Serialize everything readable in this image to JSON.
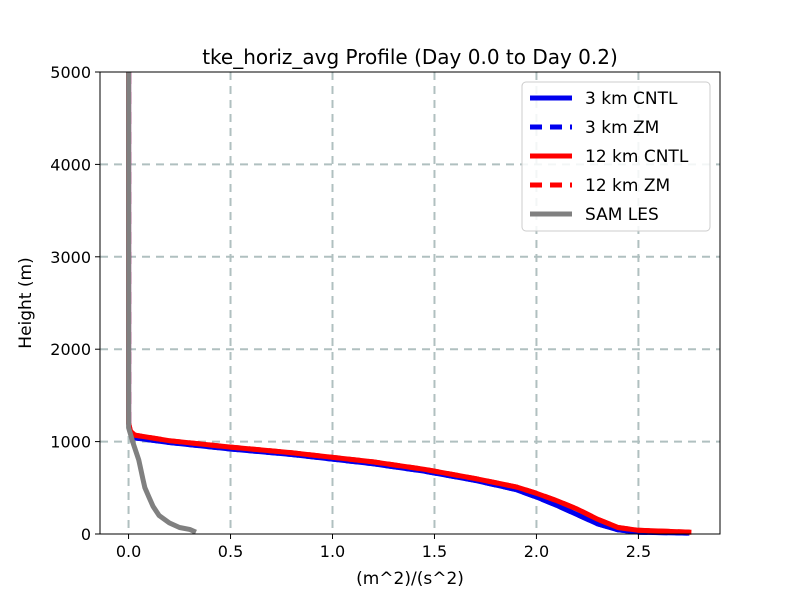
{
  "chart_data": {
    "type": "line",
    "title": "tke_horiz_avg Profile (Day 0.0 to Day 0.2)",
    "xlabel": "(m^2)/(s^2)",
    "ylabel": "Height (m)",
    "xlim": [
      -0.14,
      2.9
    ],
    "ylim": [
      0,
      5000
    ],
    "xticks": [
      0.0,
      0.5,
      1.0,
      1.5,
      2.0,
      2.5
    ],
    "xtick_labels": [
      "0.0",
      "0.5",
      "1.0",
      "1.5",
      "2.0",
      "2.5"
    ],
    "yticks": [
      0,
      1000,
      2000,
      3000,
      4000,
      5000
    ],
    "ytick_labels": [
      "0",
      "1000",
      "2000",
      "3000",
      "4000",
      "5000"
    ],
    "grid": true,
    "legend_position": "top-right",
    "series": [
      {
        "name": "3 km CNTL",
        "color": "#0000ee",
        "style": "solid",
        "points": [
          [
            0.0,
            5000
          ],
          [
            0.0,
            4000
          ],
          [
            0.0,
            3000
          ],
          [
            0.0,
            2000
          ],
          [
            0.0,
            1200
          ],
          [
            0.01,
            1100
          ],
          [
            0.03,
            1040
          ],
          [
            0.2,
            990
          ],
          [
            0.5,
            920
          ],
          [
            0.8,
            860
          ],
          [
            1.0,
            810
          ],
          [
            1.2,
            760
          ],
          [
            1.45,
            680
          ],
          [
            1.7,
            580
          ],
          [
            1.9,
            480
          ],
          [
            2.0,
            400
          ],
          [
            2.1,
            310
          ],
          [
            2.2,
            210
          ],
          [
            2.3,
            110
          ],
          [
            2.4,
            45
          ],
          [
            2.5,
            20
          ],
          [
            2.75,
            10
          ]
        ]
      },
      {
        "name": "3 km ZM",
        "color": "#0000ee",
        "style": "dashed",
        "points": [
          [
            0.0,
            5000
          ],
          [
            0.0,
            4000
          ],
          [
            0.0,
            3000
          ],
          [
            0.0,
            2000
          ],
          [
            0.0,
            1200
          ],
          [
            0.01,
            1100
          ],
          [
            0.03,
            1040
          ],
          [
            0.2,
            990
          ],
          [
            0.5,
            920
          ],
          [
            0.8,
            860
          ],
          [
            1.0,
            810
          ],
          [
            1.2,
            760
          ],
          [
            1.45,
            680
          ],
          [
            1.7,
            580
          ],
          [
            1.9,
            480
          ],
          [
            2.0,
            400
          ],
          [
            2.1,
            310
          ],
          [
            2.2,
            210
          ],
          [
            2.3,
            110
          ],
          [
            2.4,
            45
          ],
          [
            2.5,
            20
          ],
          [
            2.75,
            10
          ]
        ]
      },
      {
        "name": "12 km CNTL",
        "color": "#ff0000",
        "style": "solid",
        "points": [
          [
            0.0,
            5000
          ],
          [
            0.0,
            4000
          ],
          [
            0.0,
            3000
          ],
          [
            0.0,
            2000
          ],
          [
            0.0,
            1200
          ],
          [
            0.01,
            1110
          ],
          [
            0.03,
            1070
          ],
          [
            0.2,
            1010
          ],
          [
            0.5,
            940
          ],
          [
            0.8,
            880
          ],
          [
            1.0,
            830
          ],
          [
            1.2,
            780
          ],
          [
            1.45,
            700
          ],
          [
            1.7,
            600
          ],
          [
            1.9,
            510
          ],
          [
            2.0,
            440
          ],
          [
            2.1,
            360
          ],
          [
            2.2,
            270
          ],
          [
            2.3,
            160
          ],
          [
            2.4,
            70
          ],
          [
            2.5,
            40
          ],
          [
            2.76,
            20
          ]
        ]
      },
      {
        "name": "12 km ZM",
        "color": "#ff0000",
        "style": "dashed",
        "points": [
          [
            0.0,
            5000
          ],
          [
            0.0,
            4000
          ],
          [
            0.0,
            3000
          ],
          [
            0.0,
            2000
          ],
          [
            0.0,
            1200
          ],
          [
            0.01,
            1110
          ],
          [
            0.03,
            1070
          ],
          [
            0.2,
            1010
          ],
          [
            0.5,
            940
          ],
          [
            0.8,
            880
          ],
          [
            1.0,
            830
          ],
          [
            1.2,
            780
          ],
          [
            1.45,
            700
          ],
          [
            1.7,
            600
          ],
          [
            1.9,
            510
          ],
          [
            2.0,
            440
          ],
          [
            2.1,
            360
          ],
          [
            2.2,
            270
          ],
          [
            2.3,
            160
          ],
          [
            2.4,
            70
          ],
          [
            2.5,
            40
          ],
          [
            2.76,
            20
          ]
        ]
      },
      {
        "name": "SAM LES",
        "color": "#808080",
        "style": "solid",
        "points": [
          [
            0.0,
            5000
          ],
          [
            0.0,
            4000
          ],
          [
            0.0,
            3000
          ],
          [
            0.0,
            2000
          ],
          [
            0.0,
            1150
          ],
          [
            0.02,
            1000
          ],
          [
            0.035,
            900
          ],
          [
            0.05,
            800
          ],
          [
            0.06,
            700
          ],
          [
            0.07,
            600
          ],
          [
            0.08,
            500
          ],
          [
            0.1,
            400
          ],
          [
            0.12,
            300
          ],
          [
            0.15,
            200
          ],
          [
            0.2,
            120
          ],
          [
            0.25,
            70
          ],
          [
            0.3,
            50
          ],
          [
            0.33,
            20
          ]
        ]
      }
    ]
  }
}
